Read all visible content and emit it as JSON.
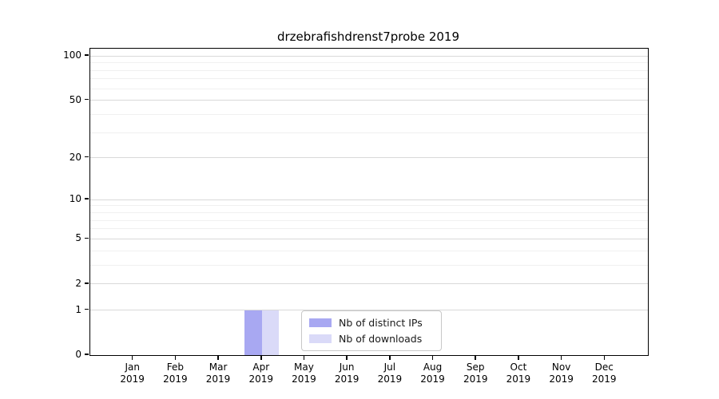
{
  "figure": {
    "background": "#ffffff"
  },
  "chart_data": {
    "type": "bar",
    "title": "drzebrafishdrenst7probe 2019",
    "categories": [
      "Jan",
      "Feb",
      "Mar",
      "Apr",
      "May",
      "Jun",
      "Jul",
      "Aug",
      "Sep",
      "Oct",
      "Nov",
      "Dec"
    ],
    "x_year_label": "2019",
    "series": [
      {
        "name": "Nb of distinct IPs",
        "color": "#a8a8f2",
        "values": [
          0,
          0,
          0,
          1,
          0,
          0,
          0,
          0,
          0,
          0,
          0,
          0
        ]
      },
      {
        "name": "Nb of downloads",
        "color": "#dadaf8",
        "values": [
          0,
          0,
          0,
          1,
          0,
          0,
          0,
          0,
          0,
          0,
          0,
          0
        ]
      }
    ],
    "xlabel": "",
    "ylabel": "",
    "yscale": "log1p",
    "ylim": [
      0,
      112
    ],
    "yticks": [
      0,
      1,
      2,
      5,
      10,
      20,
      50,
      100
    ],
    "yminorticks": [
      3,
      4,
      6,
      7,
      8,
      9,
      30,
      40,
      60,
      70,
      80,
      90
    ],
    "grid": {
      "axis": "y",
      "major_color": "#d9d9d9",
      "minor_color": "#f0f0f0"
    },
    "bar_group_width": 0.8,
    "legend": {
      "position": "inside-bottom-center",
      "entries": [
        "Nb of distinct IPs",
        "Nb of downloads"
      ]
    }
  }
}
